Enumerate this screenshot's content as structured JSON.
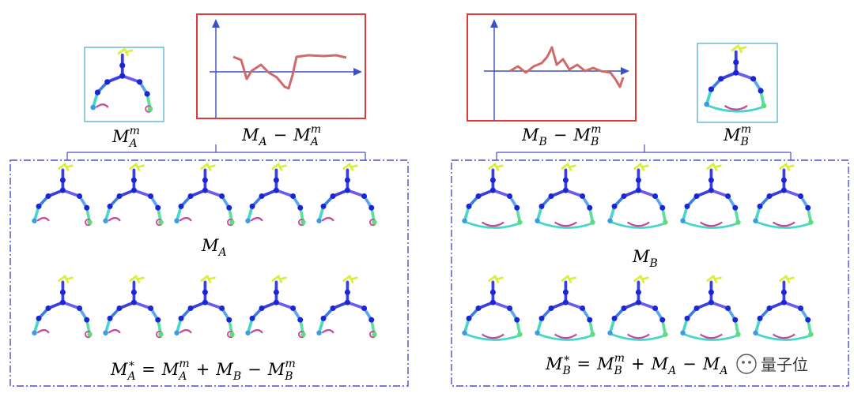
{
  "colors": {
    "panel_border": "#4a4fc4",
    "plot_border": "#e23a3a",
    "thumb_border": "#49a7cf",
    "axis": "#3b50c8",
    "curve": "#d06a6a",
    "bone_upper": "#3a3fe0",
    "bone_lower": "#48d6c8",
    "joint": "#1a26d4",
    "head": "#d8f03a",
    "foot": "#c64aa0"
  },
  "labels": {
    "ma_mean": {
      "base": "M",
      "sub": "A",
      "sup": "m"
    },
    "ma_diff": {
      "lhs": "M",
      "lsub": "A",
      "op": "−",
      "rhs": "M",
      "rsub": "A",
      "rsup": "m"
    },
    "mb_diff": {
      "lhs": "M",
      "lsub": "B",
      "op": "−",
      "rhs": "M",
      "rsub": "B",
      "rsup": "m"
    },
    "mb_mean": {
      "base": "M",
      "sub": "B",
      "sup": "m"
    },
    "ma": {
      "base": "M",
      "sub": "A"
    },
    "mb": {
      "base": "M",
      "sub": "B"
    },
    "ma_star": "M*A = MmA + MB − MmB",
    "mb_star": "M*B = MmB + MA − MA"
  },
  "plots": {
    "left_curve": [
      [
        295,
        72
      ],
      [
        305,
        76
      ],
      [
        312,
        100
      ],
      [
        318,
        90
      ],
      [
        330,
        82
      ],
      [
        340,
        92
      ],
      [
        350,
        98
      ],
      [
        360,
        110
      ],
      [
        365,
        112
      ],
      [
        370,
        95
      ],
      [
        375,
        72
      ],
      [
        390,
        70
      ],
      [
        410,
        71
      ],
      [
        425,
        70
      ],
      [
        438,
        73
      ]
    ],
    "right_curve": [
      [
        645,
        90
      ],
      [
        655,
        84
      ],
      [
        665,
        92
      ],
      [
        675,
        84
      ],
      [
        685,
        80
      ],
      [
        692,
        72
      ],
      [
        698,
        60
      ],
      [
        704,
        82
      ],
      [
        712,
        75
      ],
      [
        720,
        88
      ],
      [
        730,
        82
      ],
      [
        740,
        90
      ],
      [
        750,
        86
      ],
      [
        760,
        90
      ],
      [
        772,
        92
      ],
      [
        778,
        100
      ],
      [
        784,
        110
      ],
      [
        788,
        98
      ]
    ]
  },
  "watermark": "量子位"
}
